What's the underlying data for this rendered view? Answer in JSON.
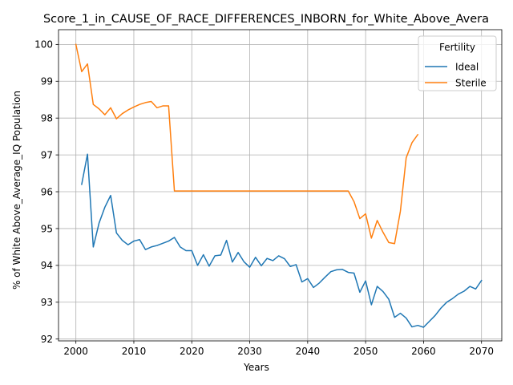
{
  "chart_data": {
    "type": "line",
    "title": "Score_1_in_CAUSE_OF_RACE_DIFFERENCES_INBORN_for_White_Above_Avera",
    "xlabel": "Years",
    "ylabel": "% of White Above_Average_IQ Population",
    "xlim": [
      1997,
      2073.5
    ],
    "ylim": [
      91.95,
      100.4
    ],
    "xticks": [
      2000,
      2010,
      2020,
      2030,
      2040,
      2050,
      2060,
      2070
    ],
    "yticks": [
      92,
      93,
      94,
      95,
      96,
      97,
      98,
      99,
      100
    ],
    "grid": true,
    "legend": {
      "title": "Fertility",
      "placement": "top-right"
    },
    "series": [
      {
        "name": "Ideal",
        "color": "#1f77b4",
        "x": [
          2001,
          2002,
          2003,
          2004,
          2005,
          2006,
          2007,
          2008,
          2009,
          2010,
          2011,
          2012,
          2013,
          2014,
          2015,
          2016,
          2017,
          2018,
          2019,
          2020,
          2021,
          2022,
          2023,
          2024,
          2025,
          2026,
          2027,
          2028,
          2029,
          2030,
          2031,
          2032,
          2033,
          2034,
          2035,
          2036,
          2037,
          2038,
          2039,
          2040,
          2041,
          2042,
          2043,
          2044,
          2045,
          2046,
          2047,
          2048,
          2049,
          2050,
          2051,
          2052,
          2053,
          2054,
          2055,
          2056,
          2057,
          2058,
          2059,
          2060,
          2061,
          2062,
          2063,
          2064,
          2065,
          2066,
          2067,
          2068,
          2069,
          2070
        ],
        "y": [
          96.2,
          97.02,
          94.5,
          95.15,
          95.58,
          95.9,
          94.88,
          94.68,
          94.56,
          94.66,
          94.7,
          94.43,
          94.5,
          94.54,
          94.6,
          94.66,
          94.76,
          94.5,
          94.4,
          94.4,
          94.0,
          94.29,
          93.98,
          94.26,
          94.28,
          94.68,
          94.09,
          94.35,
          94.1,
          93.95,
          94.22,
          93.99,
          94.19,
          94.13,
          94.26,
          94.18,
          93.97,
          94.02,
          93.55,
          93.64,
          93.4,
          93.52,
          93.68,
          93.83,
          93.88,
          93.89,
          93.81,
          93.79,
          93.27,
          93.58,
          92.93,
          93.43,
          93.29,
          93.08,
          92.59,
          92.7,
          92.57,
          92.33,
          92.37,
          92.32,
          92.48,
          92.64,
          92.84,
          93.0,
          93.1,
          93.22,
          93.3,
          93.43,
          93.36,
          93.59
        ]
      },
      {
        "name": "Sterile",
        "color": "#ff7f0e",
        "x": [
          2000,
          2001,
          2002,
          2003,
          2004,
          2005,
          2006,
          2007,
          2008,
          2009,
          2010,
          2011,
          2012,
          2013,
          2014,
          2015,
          2016,
          2017,
          2018,
          2019,
          2020,
          2021,
          2022,
          2023,
          2024,
          2025,
          2026,
          2027,
          2028,
          2029,
          2030,
          2031,
          2032,
          2033,
          2034,
          2035,
          2036,
          2037,
          2038,
          2039,
          2040,
          2041,
          2042,
          2043,
          2044,
          2045,
          2046,
          2047,
          2048,
          2049,
          2050,
          2051,
          2052,
          2053,
          2054,
          2055,
          2056,
          2057,
          2058,
          2059
        ],
        "y": [
          100.0,
          99.26,
          99.47,
          98.37,
          98.25,
          98.09,
          98.28,
          97.98,
          98.12,
          98.22,
          98.3,
          98.37,
          98.42,
          98.45,
          98.28,
          98.33,
          98.33,
          96.02,
          96.02,
          96.02,
          96.02,
          96.02,
          96.02,
          96.02,
          96.02,
          96.02,
          96.02,
          96.02,
          96.02,
          96.02,
          96.02,
          96.02,
          96.02,
          96.02,
          96.02,
          96.02,
          96.02,
          96.02,
          96.02,
          96.02,
          96.02,
          96.02,
          96.02,
          96.02,
          96.02,
          96.02,
          96.02,
          96.02,
          95.73,
          95.27,
          95.4,
          94.74,
          95.22,
          94.9,
          94.62,
          94.59,
          95.47,
          96.92,
          97.33,
          97.55
        ]
      }
    ]
  }
}
